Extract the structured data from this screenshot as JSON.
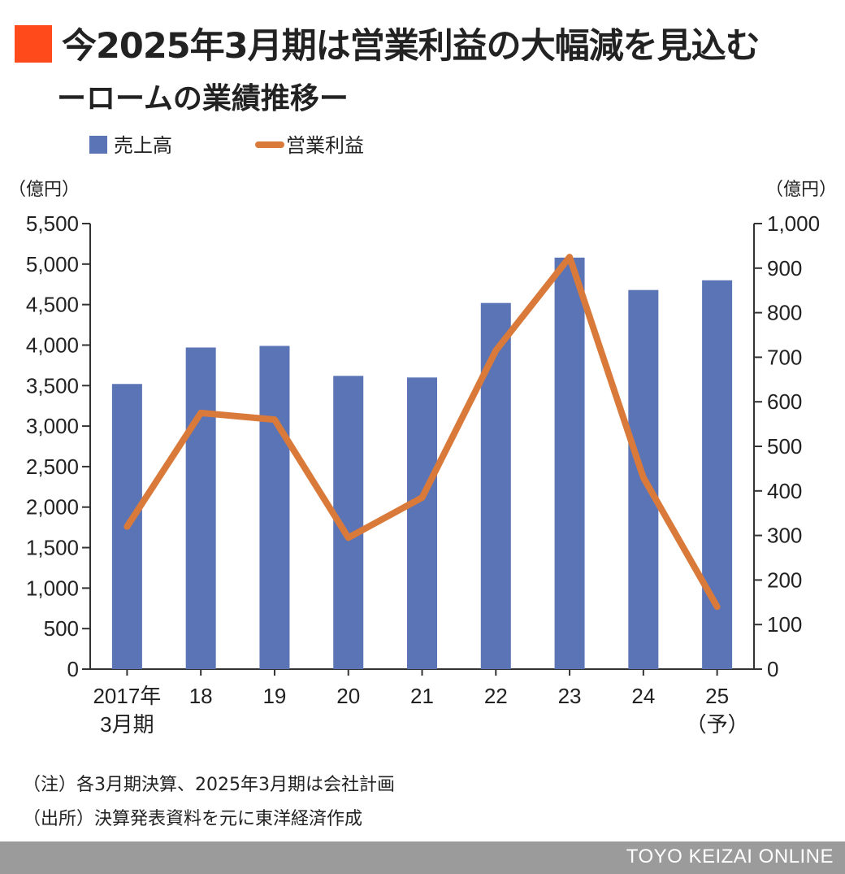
{
  "header": {
    "title": "今2025年3月期は営業利益の大幅減を見込む",
    "subtitle": "ーロームの業績推移ー"
  },
  "notes": {
    "note": "（注）各3月期決算、2025年3月期は会社計画",
    "source": "（出所）決算発表資料を元に東洋経済作成"
  },
  "footer": {
    "brand": "TOYO KEIZAI ONLINE"
  },
  "colors": {
    "bar": "#5b74b6",
    "line": "#d97a3a",
    "accent": "#ff4a1c",
    "footer": "#9b9b9b"
  },
  "chart_data": {
    "type": "bar",
    "categories": [
      "2017年\n3月期",
      "18",
      "19",
      "20",
      "21",
      "22",
      "23",
      "24",
      "25\n（予）"
    ],
    "series": [
      {
        "name": "売上高",
        "type": "bar",
        "axis": "left",
        "values": [
          3520,
          3970,
          3990,
          3620,
          3600,
          4520,
          5080,
          4680,
          4800
        ]
      },
      {
        "name": "営業利益",
        "type": "line",
        "axis": "right",
        "values": [
          320,
          575,
          560,
          295,
          385,
          715,
          925,
          430,
          140
        ]
      }
    ],
    "y_left": {
      "unit": "（億円）",
      "min": 0,
      "max": 5500,
      "ticks": [
        "0",
        "500",
        "1,000",
        "1,500",
        "2,000",
        "2,500",
        "3,000",
        "3,500",
        "4,000",
        "4,500",
        "5,000",
        "5,500"
      ]
    },
    "y_right": {
      "unit": "（億円）",
      "min": 0,
      "max": 1000,
      "ticks": [
        "0",
        "100",
        "200",
        "300",
        "400",
        "500",
        "600",
        "700",
        "800",
        "900",
        "1,000"
      ]
    },
    "legend": {
      "placement": "top-left",
      "bar_label": "売上高",
      "line_label": "営業利益"
    },
    "grid": false
  }
}
